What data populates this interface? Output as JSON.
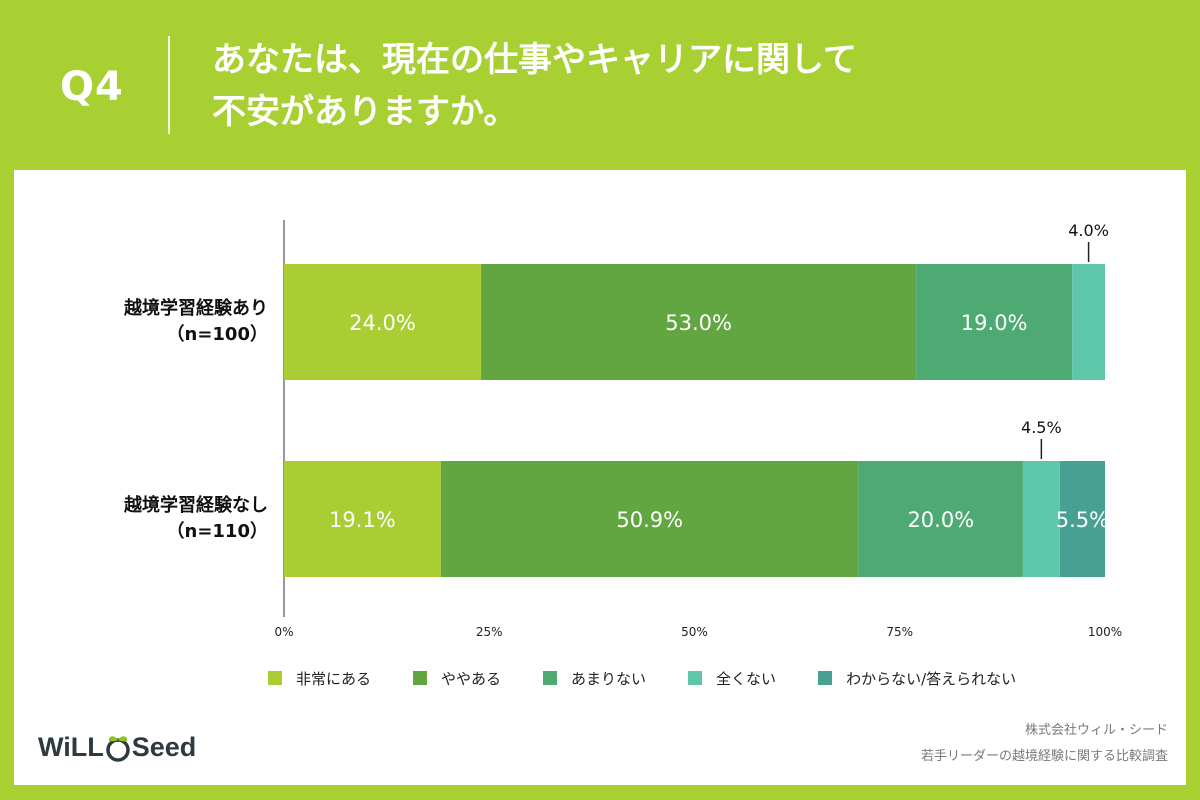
{
  "header": {
    "q_label": "Q4",
    "title_line1": "あなたは、現在の仕事やキャリアに関して",
    "title_line2": "不安がありますか。"
  },
  "chart_data": {
    "type": "bar",
    "orientation": "horizontal",
    "stacked": true,
    "categories": [
      [
        "越境学習経験あり",
        "（n=100）"
      ],
      [
        "越境学習経験なし",
        "（n=110）"
      ]
    ],
    "series": [
      {
        "name": "非常にある",
        "color": "#a9cd32",
        "values": [
          24.0,
          19.1
        ],
        "labels": [
          "24.0%",
          "19.1%"
        ]
      },
      {
        "name": "ややある",
        "color": "#62a641",
        "values": [
          53.0,
          50.9
        ],
        "labels": [
          "53.0%",
          "50.9%"
        ]
      },
      {
        "name": "あまりない",
        "color": "#4daa73",
        "values": [
          19.0,
          20.0
        ],
        "labels": [
          "19.0%",
          "20.0%"
        ]
      },
      {
        "name": "全くない",
        "color": "#5ec6a9",
        "values": [
          4.0,
          4.5
        ],
        "labels": [
          "4.0%",
          "4.5%"
        ]
      },
      {
        "name": "わからない/答えられない",
        "color": "#47a193",
        "values": [
          0,
          5.5
        ],
        "labels": [
          "",
          "5.5%"
        ]
      }
    ],
    "xlim": [
      0,
      100
    ],
    "x_ticks": [
      "0%",
      "25%",
      "50%",
      "75%",
      "100%"
    ],
    "grid": false,
    "legend_position": "bottom"
  },
  "footer": {
    "logo_left": "WiLL",
    "logo_right": "Seed",
    "company": "株式会社ウィル・シード",
    "survey": "若手リーダーの越境経験に関する比較調査"
  }
}
